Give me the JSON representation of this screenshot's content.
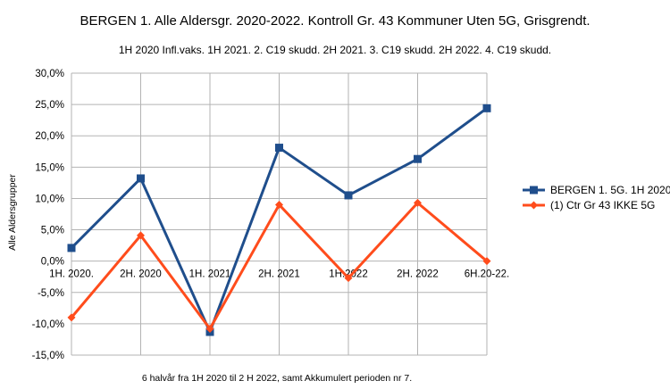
{
  "chart_data": {
    "type": "line",
    "title": "BERGEN 1. Alle Aldersgr. 2020-2022. Kontroll Gr. 43 Kommuner Uten 5G, Grisgrendt.",
    "subtitle": "1H 2020 Infl.vaks. 1H 2021. 2. C19 skudd. 2H 2021. 3. C19 skudd. 2H 2022. 4. C19 skudd.",
    "xlabel": "6 halvår fra 1H 2020 til 2 H 2022, samt Akkumulert perioden nr 7.",
    "ylabel": "Alle Aldersgrupper",
    "categories": [
      "1H. 2020.",
      "2H. 2020",
      "1H. 2021",
      "2H. 2021",
      "1H.2022",
      "2H. 2022",
      "6H.20-22."
    ],
    "ylim": [
      -15,
      30
    ],
    "yticks": [
      "-15,0%",
      "-10,0%",
      "-5,0%",
      "0,0%",
      "5,0%",
      "10,0%",
      "15,0%",
      "20,0%",
      "25,0%",
      "30,0%"
    ],
    "grid": true,
    "legend_position": "right",
    "series": [
      {
        "name": "BERGEN 1. 5G. 1H 2020.",
        "color": "#1f4e8c",
        "marker": "square",
        "values": [
          2.1,
          13.2,
          -11.3,
          18.1,
          10.5,
          16.3,
          24.4
        ]
      },
      {
        "name": "(1) Ctr Gr 43 IKKE 5G",
        "color": "#ff4c1c",
        "marker": "diamond",
        "values": [
          -9.0,
          4.1,
          -10.8,
          9.0,
          -2.7,
          9.3,
          0.0
        ]
      }
    ]
  }
}
